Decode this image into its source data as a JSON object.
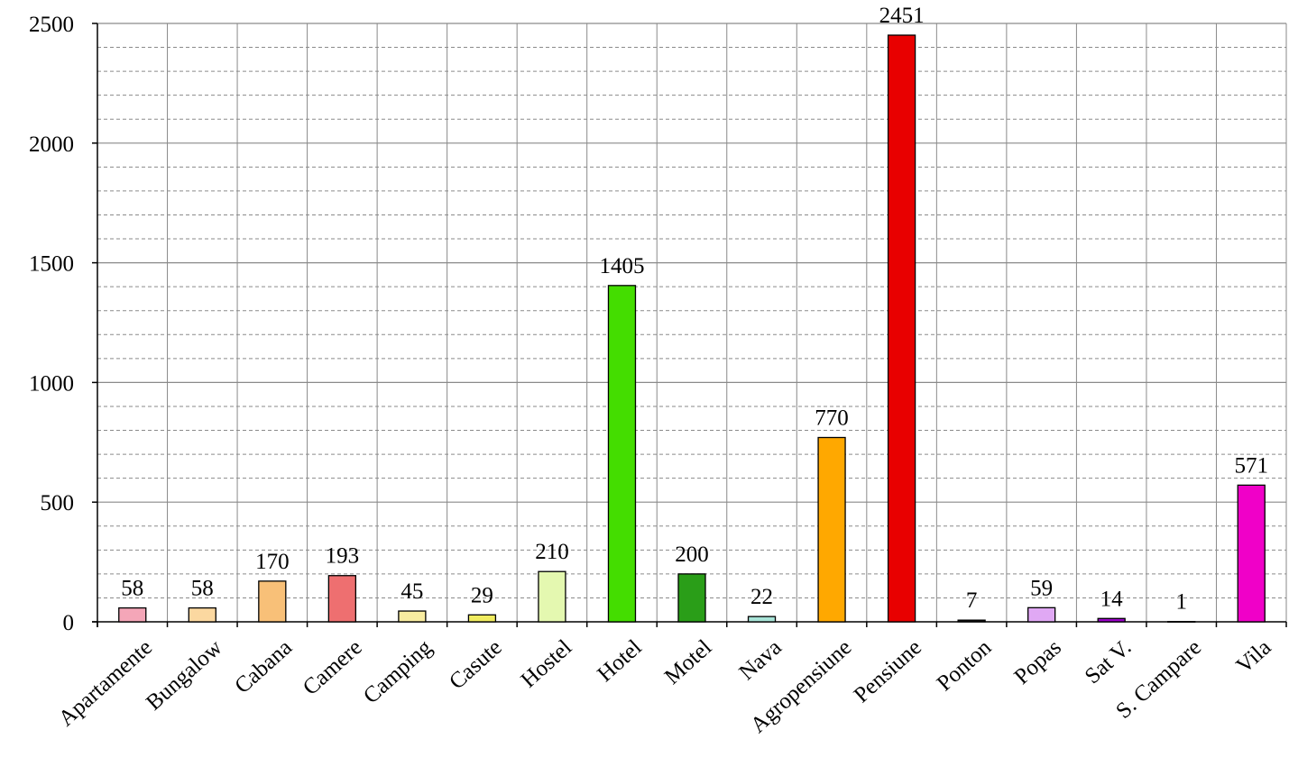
{
  "chart_data": {
    "type": "bar",
    "categories": [
      "Apartamente",
      "Bungalow",
      "Cabana",
      "Camere",
      "Camping",
      "Casute",
      "Hostel",
      "Hotel",
      "Motel",
      "Nava",
      "Agropensiune",
      "Pensiune",
      "Ponton",
      "Popas",
      "Sat V.",
      "S. Campare",
      "Vila"
    ],
    "values": [
      58,
      58,
      170,
      193,
      45,
      29,
      210,
      1405,
      200,
      22,
      770,
      2451,
      7,
      59,
      14,
      1,
      571
    ],
    "colors": [
      "#f4a6b8",
      "#fbd8a0",
      "#f8c078",
      "#ee6f70",
      "#f8eca0",
      "#f0ec60",
      "#e4f8b0",
      "#44dd00",
      "#2a9e18",
      "#a8e4d8",
      "#ffa800",
      "#e80000",
      "#1a1a1a",
      "#e0a8f4",
      "#9a00c8",
      "#ffffff",
      "#f000c8"
    ],
    "data_labels": [
      "58",
      "58",
      "170",
      "193",
      "45",
      "29",
      "210",
      "1405",
      "200",
      "22",
      "770",
      "2451",
      "7",
      "59",
      "14",
      "1",
      "571"
    ],
    "ylim": [
      0,
      2500
    ],
    "yticks": [
      "0",
      "500",
      "1000",
      "1500",
      "2000",
      "2500"
    ],
    "grid": true,
    "title": "",
    "xlabel": "",
    "ylabel": ""
  }
}
